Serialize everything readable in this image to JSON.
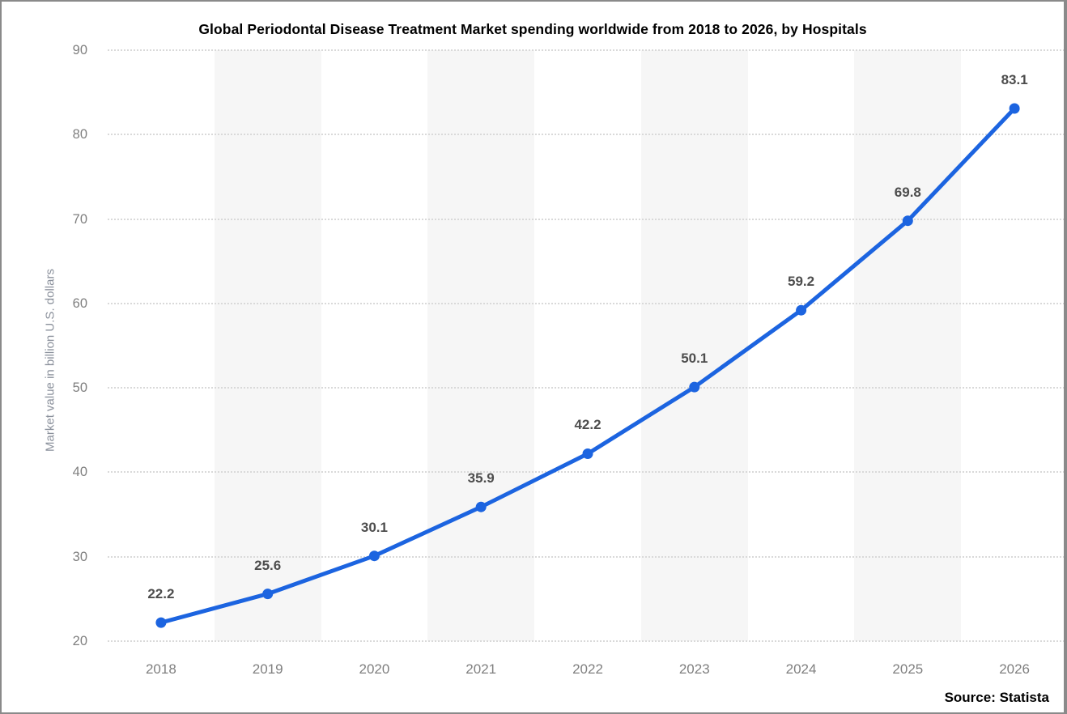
{
  "window": {
    "background": "#ffffff",
    "border_color": "#8a8a8a"
  },
  "chart_data": {
    "type": "line",
    "title": "Global Periodontal Disease Treatment Market spending worldwide from 2018 to 2026, by Hospitals",
    "categories": [
      "2018",
      "2019",
      "2020",
      "2021",
      "2022",
      "2023",
      "2024",
      "2025",
      "2026"
    ],
    "series": [
      {
        "name": "Hospitals",
        "values": [
          22.2,
          25.6,
          30.1,
          35.9,
          42.2,
          50.1,
          59.2,
          69.8,
          83.1
        ],
        "color": "#1c64e0"
      }
    ],
    "data_labels": [
      "22.2",
      "25.6",
      "30.1",
      "35.9",
      "42.2",
      "50.1",
      "59.2",
      "69.8",
      "83.1"
    ],
    "xlabel": "",
    "ylabel": "Market value in billion U.S. dollars",
    "ylim": [
      20,
      90
    ],
    "yticks": [
      20,
      30,
      40,
      50,
      60,
      70,
      80,
      90
    ],
    "grid": "horizontal dotted gridlines at every y tick",
    "plot_bands": "alternating vertical light-gray columns behind 2019, 2021, 2023, 2025",
    "legend": "none"
  },
  "footer": {
    "source_label": "Source: Statista"
  },
  "colors": {
    "line": "#1c64e0",
    "marker": "#1c64e0",
    "value_label": "#4d4d4d",
    "tick_label": "#7f7f7f",
    "axis_title": "#8b919c",
    "gridline": "#d9d9d9",
    "band": "#f6f6f6",
    "title_text": "#000000",
    "source_text": "#000000"
  }
}
